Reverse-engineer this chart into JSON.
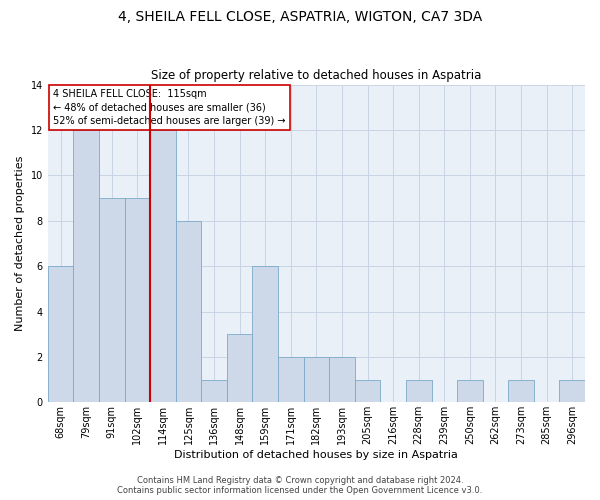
{
  "title": "4, SHEILA FELL CLOSE, ASPATRIA, WIGTON, CA7 3DA",
  "subtitle": "Size of property relative to detached houses in Aspatria",
  "xlabel": "Distribution of detached houses by size in Aspatria",
  "ylabel": "Number of detached properties",
  "categories": [
    "68sqm",
    "79sqm",
    "91sqm",
    "102sqm",
    "114sqm",
    "125sqm",
    "136sqm",
    "148sqm",
    "159sqm",
    "171sqm",
    "182sqm",
    "193sqm",
    "205sqm",
    "216sqm",
    "228sqm",
    "239sqm",
    "250sqm",
    "262sqm",
    "273sqm",
    "285sqm",
    "296sqm"
  ],
  "values": [
    6,
    12,
    9,
    9,
    12,
    8,
    1,
    3,
    6,
    2,
    2,
    2,
    1,
    0,
    1,
    0,
    1,
    0,
    1,
    0,
    1
  ],
  "bar_color": "#cdd9e8",
  "bar_edge_color": "#7aaac8",
  "highlight_line_color": "#cc0000",
  "highlight_bin_index": 4,
  "annotation_line1": "4 SHEILA FELL CLOSE:  115sqm",
  "annotation_line2": "← 48% of detached houses are smaller (36)",
  "annotation_line3": "52% of semi-detached houses are larger (39) →",
  "box_edge_color": "#cc0000",
  "ylim": [
    0,
    14
  ],
  "yticks": [
    0,
    2,
    4,
    6,
    8,
    10,
    12,
    14
  ],
  "footer_line1": "Contains HM Land Registry data © Crown copyright and database right 2024.",
  "footer_line2": "Contains public sector information licensed under the Open Government Licence v3.0.",
  "background_color": "#ffffff",
  "axes_bg_color": "#eaf0f8",
  "grid_color": "#c8d4e4",
  "title_fontsize": 10,
  "subtitle_fontsize": 8.5,
  "xlabel_fontsize": 8,
  "ylabel_fontsize": 8,
  "tick_fontsize": 7,
  "annotation_fontsize": 7,
  "footer_fontsize": 6
}
